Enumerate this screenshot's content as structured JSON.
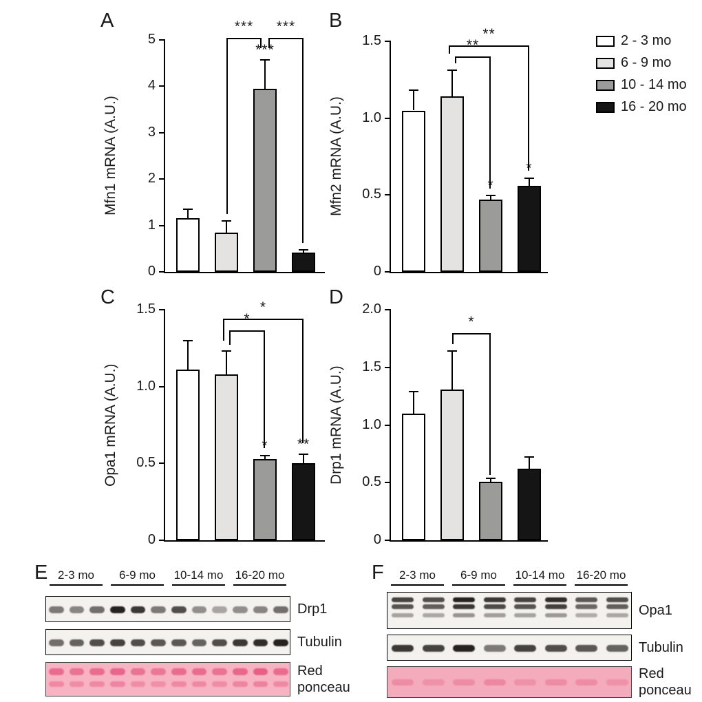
{
  "figure": {
    "panel_labels": [
      "A",
      "B",
      "C",
      "D",
      "E",
      "F"
    ],
    "background": "#ffffff"
  },
  "legend": {
    "position": "top-right",
    "items": [
      {
        "label": "2 - 3 mo",
        "color": "#ffffff"
      },
      {
        "label": "6 - 9 mo",
        "color": "#e4e3e1"
      },
      {
        "label": "10 - 14 mo",
        "color": "#9b9b99"
      },
      {
        "label": "16 - 20 mo",
        "color": "#151515"
      }
    ]
  },
  "chart_data": [
    {
      "type": "bar",
      "panel": "A",
      "title": "",
      "xlabel": "",
      "ylabel": "Mfn1 mRNA (A.U.)",
      "categories": [
        "2 - 3 mo",
        "6 - 9 mo",
        "10 - 14 mo",
        "16 - 20 mo"
      ],
      "values": [
        1.15,
        0.85,
        3.95,
        0.42
      ],
      "errors": [
        0.2,
        0.25,
        0.62,
        0.05
      ],
      "ylim": [
        0,
        5
      ],
      "yticks": [
        0,
        1,
        2,
        3,
        4,
        5
      ],
      "ytick_labels": [
        "0",
        "1",
        "2",
        "3",
        "4",
        "5"
      ],
      "grid": false,
      "bar_annotations": [
        "",
        "",
        "***",
        ""
      ],
      "brackets": [
        {
          "from": 1,
          "to": 2,
          "label": "***",
          "top": 5.05,
          "drop_from": 1.25,
          "drop_to": 4.82,
          "dx1": 0,
          "dx2": -5
        },
        {
          "from": 2,
          "to": 3,
          "label": "***",
          "top": 5.05,
          "drop_from": 4.82,
          "drop_to": 0.62,
          "dx1": 5,
          "dx2": 0
        }
      ]
    },
    {
      "type": "bar",
      "panel": "B",
      "title": "",
      "xlabel": "",
      "ylabel": "Mfn2 mRNA (A.U.)",
      "categories": [
        "2 - 3 mo",
        "6 - 9 mo",
        "10 - 14 mo",
        "16 - 20 mo"
      ],
      "values": [
        1.05,
        1.14,
        0.47,
        0.56
      ],
      "errors": [
        0.13,
        0.17,
        0.025,
        0.05
      ],
      "ylim": [
        0,
        1.5
      ],
      "yticks": [
        0,
        0.5,
        1.0,
        1.5
      ],
      "ytick_labels": [
        "0",
        "0.5",
        "1.0",
        "1.5"
      ],
      "grid": false,
      "bar_annotations": [
        "",
        "",
        "*",
        "*"
      ],
      "brackets": [
        {
          "from": 1,
          "to": 3,
          "label": "**",
          "top": 1.475,
          "drop_from": 1.42,
          "drop_to": 0.66,
          "dx1": -5,
          "dx2": 0
        },
        {
          "from": 1,
          "to": 2,
          "label": "**",
          "top": 1.4,
          "drop_from": 1.355,
          "drop_to": 0.54,
          "dx1": 4,
          "dx2": 0
        }
      ]
    },
    {
      "type": "bar",
      "panel": "C",
      "title": "",
      "xlabel": "",
      "ylabel": "Opa1 mRNA (A.U.)",
      "categories": [
        "2 - 3 mo",
        "6 - 9 mo",
        "10 - 14 mo",
        "16 - 20 mo"
      ],
      "values": [
        1.11,
        1.08,
        0.53,
        0.5
      ],
      "errors": [
        0.19,
        0.15,
        0.02,
        0.06
      ],
      "ylim": [
        0,
        1.5
      ],
      "yticks": [
        0,
        0.5,
        1.0,
        1.5
      ],
      "ytick_labels": [
        "0",
        "0.5",
        "1.0",
        "1.5"
      ],
      "grid": false,
      "bar_annotations": [
        "",
        "",
        "*",
        "**"
      ],
      "brackets": [
        {
          "from": 1,
          "to": 3,
          "label": "*",
          "top": 1.44,
          "drop_from": 1.3,
          "drop_to": 0.63,
          "dx1": -5,
          "dx2": 0
        },
        {
          "from": 1,
          "to": 2,
          "label": "*",
          "top": 1.365,
          "drop_from": 1.27,
          "drop_to": 0.6,
          "dx1": 4,
          "dx2": 0
        }
      ]
    },
    {
      "type": "bar",
      "panel": "D",
      "title": "",
      "xlabel": "",
      "ylabel": "Drp1 mRNA (A.U.)",
      "categories": [
        "2 - 3 mo",
        "6 - 9 mo",
        "10 - 14 mo",
        "16 - 20 mo"
      ],
      "values": [
        1.1,
        1.31,
        0.51,
        0.62
      ],
      "errors": [
        0.19,
        0.33,
        0.03,
        0.1
      ],
      "ylim": [
        0,
        2.0
      ],
      "yticks": [
        0,
        0.5,
        1.0,
        1.5,
        2.0
      ],
      "ytick_labels": [
        "0",
        "0.5",
        "1.0",
        "1.5",
        "2.0"
      ],
      "grid": false,
      "bar_annotations": [
        "",
        "",
        "",
        ""
      ],
      "brackets": [
        {
          "from": 1,
          "to": 2,
          "label": "*",
          "top": 1.8,
          "drop_from": 1.7,
          "drop_to": 0.57,
          "dx1": 0,
          "dx2": 0
        }
      ]
    }
  ],
  "blots": [
    {
      "panel": "E",
      "group_labels": [
        "2-3 mo",
        "6-9 mo",
        "10-14 mo",
        "16-20 mo"
      ],
      "lanes_per_group": 3,
      "rows": [
        {
          "label": "Drp1",
          "style": "bands-single",
          "band_intensities": [
            0.55,
            0.5,
            0.6,
            0.95,
            0.85,
            0.55,
            0.75,
            0.45,
            0.35,
            0.45,
            0.5,
            0.6
          ]
        },
        {
          "label": "Tubulin",
          "style": "bands-single",
          "band_intensities": [
            0.6,
            0.65,
            0.75,
            0.8,
            0.75,
            0.7,
            0.7,
            0.65,
            0.75,
            0.85,
            0.9,
            0.95
          ]
        },
        {
          "label": "Red ponceau",
          "style": "ponceau",
          "band_intensities": [
            0.6,
            0.55,
            0.6,
            0.65,
            0.55,
            0.5,
            0.6,
            0.6,
            0.55,
            0.65,
            0.7,
            0.6
          ]
        }
      ]
    },
    {
      "panel": "F",
      "group_labels": [
        "2-3 mo",
        "6-9 mo",
        "10-14 mo",
        "16-20 mo"
      ],
      "lanes_per_group": 2,
      "rows": [
        {
          "label": "Opa1",
          "style": "bands-doublet",
          "band_intensities": [
            0.8,
            0.75,
            0.95,
            0.85,
            0.8,
            0.9,
            0.7,
            0.75
          ]
        },
        {
          "label": "Tubulin",
          "style": "bands-single",
          "band_intensities": [
            0.85,
            0.8,
            0.95,
            0.55,
            0.8,
            0.75,
            0.7,
            0.65
          ]
        },
        {
          "label": "Red ponceau",
          "style": "ponceau-faint",
          "band_intensities": [
            0.3,
            0.25,
            0.3,
            0.35,
            0.25,
            0.3,
            0.3,
            0.25
          ]
        }
      ]
    }
  ]
}
